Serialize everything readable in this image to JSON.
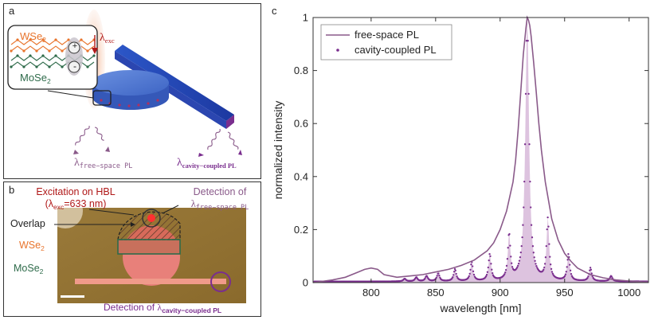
{
  "panel_a": {
    "label": "a",
    "wse2": "WSe",
    "wse2_sub": "2",
    "mose2": "MoSe",
    "mose2_sub": "2",
    "plus": "+",
    "minus": "-",
    "lambda_exc": "λ",
    "lambda_exc_sub": "exc",
    "lambda_free": "λ",
    "lambda_free_sub": "free−space PL",
    "lambda_cav": "λ",
    "lambda_cav_sub": "cavity−coupled PL"
  },
  "panel_b": {
    "label": "b",
    "excitation_line1": "Excitation on HBL",
    "excitation_line2_pre": "(λ",
    "excitation_line2_sub": "exc",
    "excitation_line2_post": "=633 nm)",
    "detection_free_line1": "Detection of",
    "detection_free_lambda": "λ",
    "detection_free_sub": "free−space PL",
    "overlap": "Overlap",
    "wse2": "WSe",
    "wse2_sub": "2",
    "mose2": "MoSe",
    "mose2_sub": "2",
    "detection_cav_pre": "Detection of ",
    "detection_cav_lambda": "λ",
    "detection_cav_sub": "cavity−coupled PL"
  },
  "panel_c": {
    "label": "c"
  },
  "colors": {
    "wse2": "#e8742c",
    "mose2": "#2e6b4a",
    "purple": "#7a2e8e",
    "line": "#8a5a8a",
    "red": "#b01818",
    "fill": "#d9bcdc"
  },
  "chart_data": {
    "type": "line",
    "xlabel": "wavelength [nm]",
    "ylabel": "normalized intensity",
    "xlim": [
      755,
      1015
    ],
    "ylim": [
      0,
      1
    ],
    "xticks": [
      800,
      850,
      900,
      950,
      1000
    ],
    "yticks": [
      0,
      0.2,
      0.4,
      0.6,
      0.8,
      1
    ],
    "legend_position": "top-left",
    "series": [
      {
        "name": "free-space PL",
        "style": "line",
        "x": [
          755,
          770,
          780,
          790,
          795,
          800,
          805,
          810,
          820,
          830,
          840,
          850,
          860,
          870,
          880,
          890,
          895,
          900,
          905,
          910,
          912,
          914,
          916,
          918,
          920,
          921,
          922,
          923,
          924,
          926,
          928,
          930,
          932,
          935,
          940,
          945,
          950,
          955,
          960,
          970,
          980,
          990,
          1000,
          1010,
          1015
        ],
        "y": [
          0.0,
          0.01,
          0.02,
          0.04,
          0.05,
          0.055,
          0.05,
          0.03,
          0.02,
          0.025,
          0.03,
          0.04,
          0.05,
          0.065,
          0.085,
          0.12,
          0.15,
          0.2,
          0.27,
          0.38,
          0.46,
          0.58,
          0.72,
          0.86,
          0.96,
          1.0,
          0.99,
          0.97,
          0.93,
          0.83,
          0.72,
          0.6,
          0.5,
          0.38,
          0.24,
          0.16,
          0.11,
          0.08,
          0.055,
          0.03,
          0.018,
          0.01,
          0.006,
          0.003,
          0.002
        ]
      },
      {
        "name": "cavity-coupled PL",
        "style": "dots",
        "peaks": [
          {
            "x": 826,
            "y": 0.01
          },
          {
            "x": 835,
            "y": 0.015
          },
          {
            "x": 843,
            "y": 0.02
          },
          {
            "x": 852,
            "y": 0.03
          },
          {
            "x": 865,
            "y": 0.045
          },
          {
            "x": 878,
            "y": 0.07
          },
          {
            "x": 892,
            "y": 0.1
          },
          {
            "x": 907,
            "y": 0.17
          },
          {
            "x": 921,
            "y": 1.0
          },
          {
            "x": 937,
            "y": 0.23
          },
          {
            "x": 953,
            "y": 0.1
          },
          {
            "x": 970,
            "y": 0.05
          },
          {
            "x": 986,
            "y": 0.02
          }
        ]
      }
    ]
  }
}
